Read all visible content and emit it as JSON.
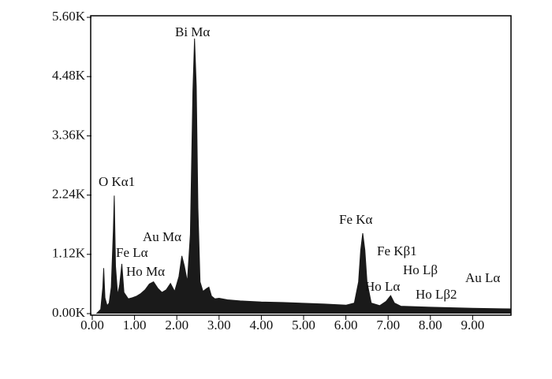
{
  "chart_data": {
    "type": "area",
    "x": [
      0.1,
      0.2,
      0.25,
      0.27,
      0.3,
      0.35,
      0.4,
      0.45,
      0.5,
      0.52,
      0.55,
      0.6,
      0.65,
      0.7,
      0.75,
      0.85,
      0.95,
      1.05,
      1.15,
      1.25,
      1.35,
      1.45,
      1.55,
      1.65,
      1.75,
      1.85,
      1.95,
      2.05,
      2.12,
      2.18,
      2.25,
      2.32,
      2.38,
      2.42,
      2.46,
      2.5,
      2.55,
      2.62,
      2.7,
      2.76,
      2.82,
      2.9,
      3.0,
      3.2,
      3.5,
      4.0,
      4.5,
      5.0,
      5.5,
      6.0,
      6.2,
      6.3,
      6.35,
      6.4,
      6.45,
      6.5,
      6.6,
      6.8,
      6.95,
      7.06,
      7.15,
      7.3,
      8.0,
      9.0,
      9.9
    ],
    "values": [
      0,
      80,
      500,
      860,
      300,
      150,
      200,
      500,
      1600,
      2230,
      900,
      350,
      550,
      940,
      400,
      280,
      300,
      330,
      380,
      450,
      560,
      600,
      480,
      400,
      450,
      570,
      420,
      700,
      1090,
      900,
      600,
      1500,
      4200,
      5200,
      4300,
      2000,
      600,
      420,
      470,
      500,
      330,
      280,
      290,
      260,
      240,
      220,
      210,
      195,
      180,
      160,
      200,
      600,
      1200,
      1520,
      1200,
      600,
      200,
      150,
      230,
      340,
      200,
      140,
      120,
      100,
      90
    ],
    "color": "#1a1a1a",
    "xlim": [
      0,
      9.9
    ],
    "xticks": [
      {
        "value": 0,
        "label": "0.00"
      },
      {
        "value": 1,
        "label": "1.00"
      },
      {
        "value": 2,
        "label": "2.00"
      },
      {
        "value": 3,
        "label": "3.00"
      },
      {
        "value": 4,
        "label": "4.00"
      },
      {
        "value": 5,
        "label": "5.00"
      },
      {
        "value": 6,
        "label": "6.00"
      },
      {
        "value": 7,
        "label": "7.00"
      },
      {
        "value": 8,
        "label": "8.00"
      },
      {
        "value": 9,
        "label": "9.00"
      }
    ],
    "ylim": [
      0,
      5600
    ],
    "yticks": [
      {
        "value": 0,
        "label": "0.00K"
      },
      {
        "value": 1120,
        "label": "1.12K"
      },
      {
        "value": 2240,
        "label": "2.24K"
      },
      {
        "value": 3360,
        "label": "3.36K"
      },
      {
        "value": 4480,
        "label": "4.48K"
      },
      {
        "value": 5600,
        "label": "5.60K"
      }
    ],
    "annotations": [
      "Bi Mα",
      "O Kα1",
      "Fe Lα",
      "Ho Mα",
      "Au Mα",
      "Fe Kα",
      "Fe Kβ1",
      "Ho Lα",
      "Ho Lβ",
      "Ho Lβ2",
      "Au Lα"
    ]
  }
}
